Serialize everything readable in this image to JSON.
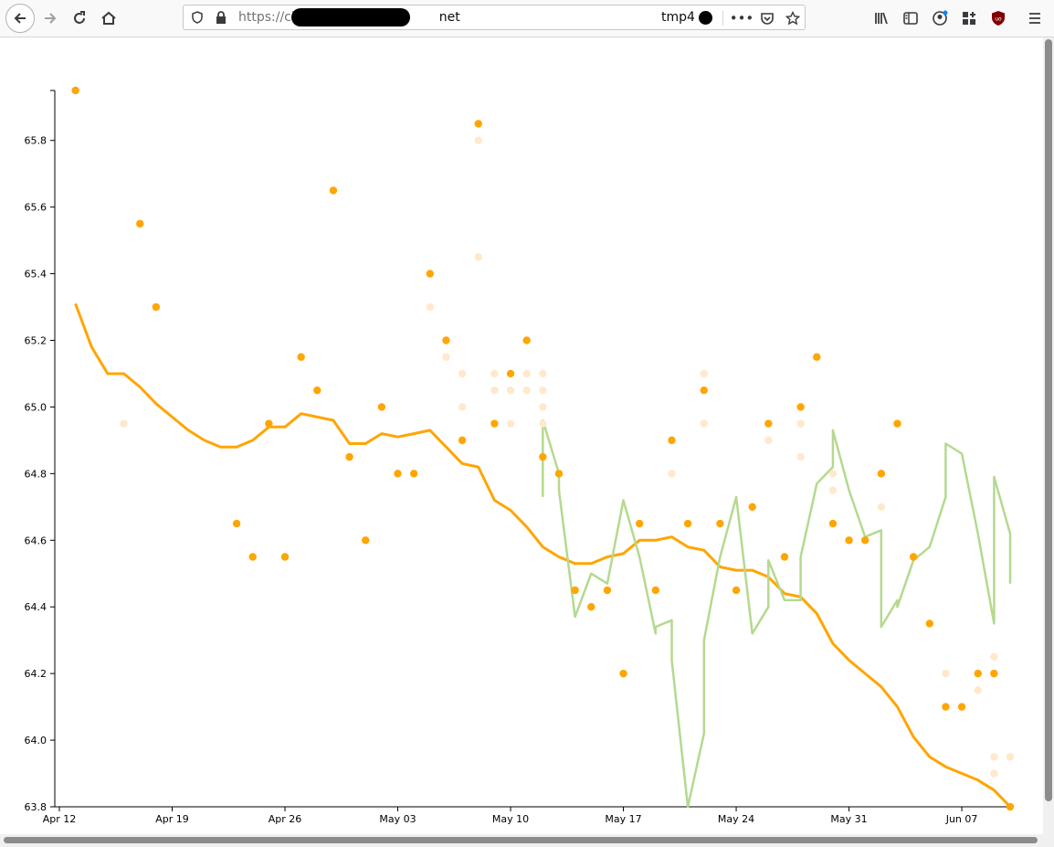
{
  "browser": {
    "url_prefix": "https://cl",
    "url_suffix": "net",
    "tab_label": "tmp4"
  },
  "colors": {
    "avg_line": "#FFA500",
    "trend_line": "#B5D98F",
    "point": "#FFA500",
    "faded_point": "#FFD9A0",
    "faint_point": "#FFE9CC"
  },
  "chart_data": {
    "type": "scatter",
    "title": "",
    "xlabel": "",
    "ylabel": "",
    "x_ticks": [
      "Apr 12",
      "Apr 19",
      "Apr 26",
      "May 03",
      "May 10",
      "May 17",
      "May 24",
      "May 31",
      "Jun 07"
    ],
    "y_ticks": [
      "63.8",
      "64.0",
      "64.2",
      "64.4",
      "64.6",
      "64.8",
      "65.0",
      "65.2",
      "65.4",
      "65.6",
      "65.8"
    ],
    "xlim": [
      "2021-04-12",
      "2021-06-10"
    ],
    "ylim": [
      63.8,
      65.95
    ],
    "grid": false,
    "series": [
      {
        "kind": "points",
        "style": "solid",
        "points": [
          [
            "2021-04-13",
            65.95
          ],
          [
            "2021-04-17",
            65.55
          ],
          [
            "2021-04-18",
            65.3
          ],
          [
            "2021-04-23",
            64.65
          ],
          [
            "2021-04-24",
            64.55
          ],
          [
            "2021-04-25",
            64.95
          ],
          [
            "2021-04-26",
            64.55
          ],
          [
            "2021-04-27",
            65.15
          ],
          [
            "2021-04-28",
            65.05
          ],
          [
            "2021-04-29",
            65.65
          ],
          [
            "2021-04-30",
            64.85
          ],
          [
            "2021-05-01",
            64.6
          ],
          [
            "2021-05-02",
            65.0
          ],
          [
            "2021-05-03",
            64.8
          ],
          [
            "2021-05-04",
            64.8
          ],
          [
            "2021-05-05",
            65.4
          ],
          [
            "2021-05-06",
            65.2
          ],
          [
            "2021-05-07",
            64.9
          ],
          [
            "2021-05-08",
            65.85
          ],
          [
            "2021-05-09",
            64.95
          ],
          [
            "2021-05-10",
            65.1
          ],
          [
            "2021-05-11",
            65.2
          ],
          [
            "2021-05-12",
            64.85
          ],
          [
            "2021-05-13",
            64.8
          ],
          [
            "2021-05-14",
            64.45
          ],
          [
            "2021-05-15",
            64.4
          ],
          [
            "2021-05-16",
            64.45
          ],
          [
            "2021-05-17",
            64.2
          ],
          [
            "2021-05-18",
            64.65
          ],
          [
            "2021-05-19",
            64.45
          ],
          [
            "2021-05-20",
            64.9
          ],
          [
            "2021-05-21",
            64.65
          ],
          [
            "2021-05-22",
            65.05
          ],
          [
            "2021-05-23",
            64.65
          ],
          [
            "2021-05-24",
            64.45
          ],
          [
            "2021-05-25",
            64.7
          ],
          [
            "2021-05-26",
            64.95
          ],
          [
            "2021-05-27",
            64.55
          ],
          [
            "2021-05-28",
            65.0
          ],
          [
            "2021-05-29",
            65.15
          ],
          [
            "2021-05-30",
            64.65
          ],
          [
            "2021-05-31",
            64.6
          ],
          [
            "2021-06-01",
            64.6
          ],
          [
            "2021-06-02",
            64.8
          ],
          [
            "2021-06-03",
            64.95
          ],
          [
            "2021-06-04",
            64.55
          ],
          [
            "2021-06-05",
            64.35
          ],
          [
            "2021-06-06",
            64.1
          ],
          [
            "2021-06-07",
            64.1
          ],
          [
            "2021-06-08",
            64.2
          ],
          [
            "2021-06-09",
            64.2
          ],
          [
            "2021-06-10",
            63.8
          ]
        ]
      },
      {
        "kind": "points",
        "style": "faded",
        "points": [
          [
            "2021-04-16",
            64.95
          ],
          [
            "2021-05-05",
            65.3
          ],
          [
            "2021-05-06",
            65.15
          ],
          [
            "2021-05-07",
            65.1
          ],
          [
            "2021-05-07",
            65.0
          ],
          [
            "2021-05-08",
            65.8
          ],
          [
            "2021-05-08",
            65.45
          ],
          [
            "2021-05-09",
            65.1
          ],
          [
            "2021-05-09",
            65.05
          ],
          [
            "2021-05-10",
            65.05
          ],
          [
            "2021-05-10",
            64.95
          ],
          [
            "2021-05-11",
            65.1
          ],
          [
            "2021-05-11",
            65.05
          ],
          [
            "2021-05-12",
            65.1
          ],
          [
            "2021-05-12",
            65.05
          ],
          [
            "2021-05-12",
            65.0
          ],
          [
            "2021-05-12",
            64.95
          ],
          [
            "2021-05-20",
            64.8
          ],
          [
            "2021-05-22",
            65.1
          ],
          [
            "2021-05-22",
            64.95
          ],
          [
            "2021-05-26",
            64.9
          ],
          [
            "2021-05-28",
            64.95
          ],
          [
            "2021-05-28",
            64.85
          ],
          [
            "2021-05-30",
            64.8
          ],
          [
            "2021-05-30",
            64.75
          ],
          [
            "2021-06-02",
            64.7
          ],
          [
            "2021-06-06",
            64.2
          ],
          [
            "2021-06-08",
            64.15
          ],
          [
            "2021-06-09",
            64.25
          ],
          [
            "2021-06-09",
            63.95
          ],
          [
            "2021-06-09",
            63.9
          ],
          [
            "2021-06-10",
            63.95
          ]
        ]
      },
      {
        "kind": "line",
        "style": "avg",
        "points": [
          [
            "2021-04-13",
            65.31
          ],
          [
            "2021-04-14",
            65.18
          ],
          [
            "2021-04-15",
            65.1
          ],
          [
            "2021-04-16",
            65.1
          ],
          [
            "2021-04-17",
            65.06
          ],
          [
            "2021-04-18",
            65.01
          ],
          [
            "2021-04-19",
            64.97
          ],
          [
            "2021-04-20",
            64.93
          ],
          [
            "2021-04-21",
            64.9
          ],
          [
            "2021-04-22",
            64.88
          ],
          [
            "2021-04-23",
            64.88
          ],
          [
            "2021-04-24",
            64.9
          ],
          [
            "2021-04-25",
            64.94
          ],
          [
            "2021-04-26",
            64.94
          ],
          [
            "2021-04-27",
            64.98
          ],
          [
            "2021-04-28",
            64.97
          ],
          [
            "2021-04-29",
            64.96
          ],
          [
            "2021-04-30",
            64.89
          ],
          [
            "2021-05-01",
            64.89
          ],
          [
            "2021-05-02",
            64.92
          ],
          [
            "2021-05-03",
            64.91
          ],
          [
            "2021-05-04",
            64.92
          ],
          [
            "2021-05-05",
            64.93
          ],
          [
            "2021-05-06",
            64.88
          ],
          [
            "2021-05-07",
            64.83
          ],
          [
            "2021-05-08",
            64.82
          ],
          [
            "2021-05-09",
            64.72
          ],
          [
            "2021-05-10",
            64.69
          ],
          [
            "2021-05-11",
            64.64
          ],
          [
            "2021-05-12",
            64.58
          ],
          [
            "2021-05-13",
            64.55
          ],
          [
            "2021-05-14",
            64.53
          ],
          [
            "2021-05-15",
            64.53
          ],
          [
            "2021-05-16",
            64.55
          ],
          [
            "2021-05-17",
            64.56
          ],
          [
            "2021-05-18",
            64.6
          ],
          [
            "2021-05-19",
            64.6
          ],
          [
            "2021-05-20",
            64.61
          ],
          [
            "2021-05-21",
            64.58
          ],
          [
            "2021-05-22",
            64.57
          ],
          [
            "2021-05-23",
            64.52
          ],
          [
            "2021-05-24",
            64.51
          ],
          [
            "2021-05-25",
            64.51
          ],
          [
            "2021-05-26",
            64.49
          ],
          [
            "2021-05-27",
            64.44
          ],
          [
            "2021-05-28",
            64.43
          ],
          [
            "2021-05-29",
            64.38
          ],
          [
            "2021-05-30",
            64.29
          ],
          [
            "2021-05-31",
            64.24
          ],
          [
            "2021-06-01",
            64.2
          ],
          [
            "2021-06-02",
            64.16
          ],
          [
            "2021-06-03",
            64.1
          ],
          [
            "2021-06-04",
            64.01
          ],
          [
            "2021-06-05",
            63.95
          ],
          [
            "2021-06-06",
            63.92
          ],
          [
            "2021-06-07",
            63.9
          ],
          [
            "2021-06-08",
            63.88
          ],
          [
            "2021-06-09",
            63.85
          ],
          [
            "2021-06-10",
            63.8
          ]
        ]
      },
      {
        "kind": "line",
        "style": "trend",
        "points": [
          [
            "2021-05-12",
            64.73
          ],
          [
            "2021-05-12",
            64.96
          ],
          [
            "2021-05-13",
            64.8
          ],
          [
            "2021-05-13",
            64.75
          ],
          [
            "2021-05-14",
            64.37
          ],
          [
            "2021-05-15",
            64.5
          ],
          [
            "2021-05-16",
            64.47
          ],
          [
            "2021-05-17",
            64.72
          ],
          [
            "2021-05-18",
            64.55
          ],
          [
            "2021-05-19",
            64.32
          ],
          [
            "2021-05-19",
            64.34
          ],
          [
            "2021-05-20",
            64.36
          ],
          [
            "2021-05-20",
            64.24
          ],
          [
            "2021-05-21",
            63.8
          ],
          [
            "2021-05-22",
            64.02
          ],
          [
            "2021-05-22",
            64.3
          ],
          [
            "2021-05-23",
            64.55
          ],
          [
            "2021-05-24",
            64.73
          ],
          [
            "2021-05-25",
            64.32
          ],
          [
            "2021-05-26",
            64.4
          ],
          [
            "2021-05-26",
            64.54
          ],
          [
            "2021-05-27",
            64.42
          ],
          [
            "2021-05-28",
            64.42
          ],
          [
            "2021-05-28",
            64.55
          ],
          [
            "2021-05-29",
            64.77
          ],
          [
            "2021-05-30",
            64.82
          ],
          [
            "2021-05-30",
            64.93
          ],
          [
            "2021-05-31",
            64.75
          ],
          [
            "2021-06-01",
            64.61
          ],
          [
            "2021-06-02",
            64.63
          ],
          [
            "2021-06-02",
            64.34
          ],
          [
            "2021-06-03",
            64.42
          ],
          [
            "2021-06-03",
            64.4
          ],
          [
            "2021-06-04",
            64.54
          ],
          [
            "2021-06-05",
            64.58
          ],
          [
            "2021-06-06",
            64.73
          ],
          [
            "2021-06-06",
            64.89
          ],
          [
            "2021-06-07",
            64.86
          ],
          [
            "2021-06-08",
            64.62
          ],
          [
            "2021-06-09",
            64.35
          ],
          [
            "2021-06-09",
            64.79
          ],
          [
            "2021-06-10",
            64.62
          ],
          [
            "2021-06-10",
            64.47
          ]
        ]
      }
    ]
  }
}
